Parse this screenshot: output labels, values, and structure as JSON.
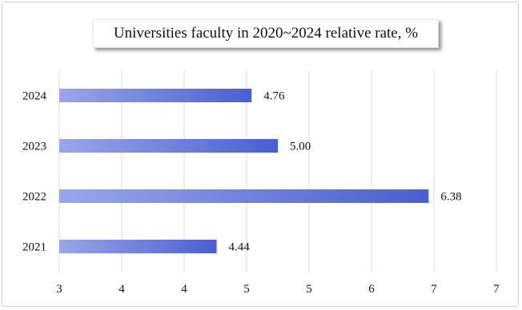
{
  "chart_data": {
    "type": "bar",
    "orientation": "horizontal",
    "title": "Universities faculty in 2020~2024 relative rate, %",
    "categories": [
      "2021",
      "2022",
      "2023",
      "2024"
    ],
    "values": [
      4.44,
      6.38,
      5.0,
      4.76
    ],
    "value_labels": [
      "4.44",
      "6.38",
      "5.00",
      "4.76"
    ],
    "x_ticks": [
      "3",
      "4",
      "4",
      "5",
      "5",
      "6",
      "7",
      "7"
    ],
    "xlim": [
      3,
      7
    ],
    "grid": true,
    "bar_gradient": [
      "#9aa6e6",
      "#4a5fd0"
    ]
  }
}
